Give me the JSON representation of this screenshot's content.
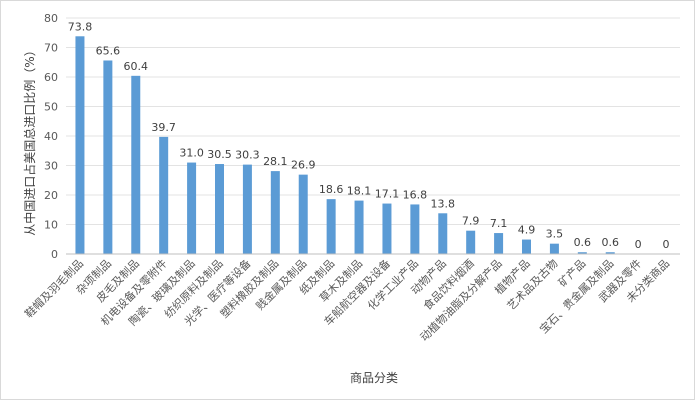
{
  "chart_data": {
    "type": "bar",
    "xlabel": "商品分类",
    "ylabel": "从中国进口占美国总进口比例（%）",
    "ylim": [
      0,
      80
    ],
    "yticks": [
      0,
      10,
      20,
      30,
      40,
      50,
      60,
      70,
      80
    ],
    "grid": true,
    "bar_color": "#5b9bd5",
    "categories": [
      "鞋帽及羽毛制品",
      "杂项制品",
      "皮毛及制品",
      "机电设备及零附件",
      "陶瓷、玻璃及制品",
      "纺织原料及制品",
      "光学、医疗等设备",
      "塑料橡胶及制品",
      "贱金属及制品",
      "纸及制品",
      "草木及制品",
      "车船航空器及设备",
      "化学工业产品",
      "动物产品",
      "食品饮料烟酒",
      "动植物油脂及分解产品",
      "植物产品",
      "艺术品及古物",
      "矿产品",
      "宝石、贵金属及制品",
      "武器及零件",
      "未分类商品"
    ],
    "values": [
      73.8,
      65.6,
      60.4,
      39.7,
      31.0,
      30.5,
      30.3,
      28.1,
      26.9,
      18.6,
      18.1,
      17.1,
      16.8,
      13.8,
      7.9,
      7.1,
      4.9,
      3.5,
      0.6,
      0.6,
      0,
      0
    ],
    "value_labels": [
      "73.8",
      "65.6",
      "60.4",
      "39.7",
      "31.0",
      "30.5",
      "30.3",
      "28.1",
      "26.9",
      "18.6",
      "18.1",
      "17.1",
      "16.8",
      "13.8",
      "7.9",
      "7.1",
      "4.9",
      "3.5",
      "0.6",
      "0.6",
      "0",
      "0"
    ]
  }
}
